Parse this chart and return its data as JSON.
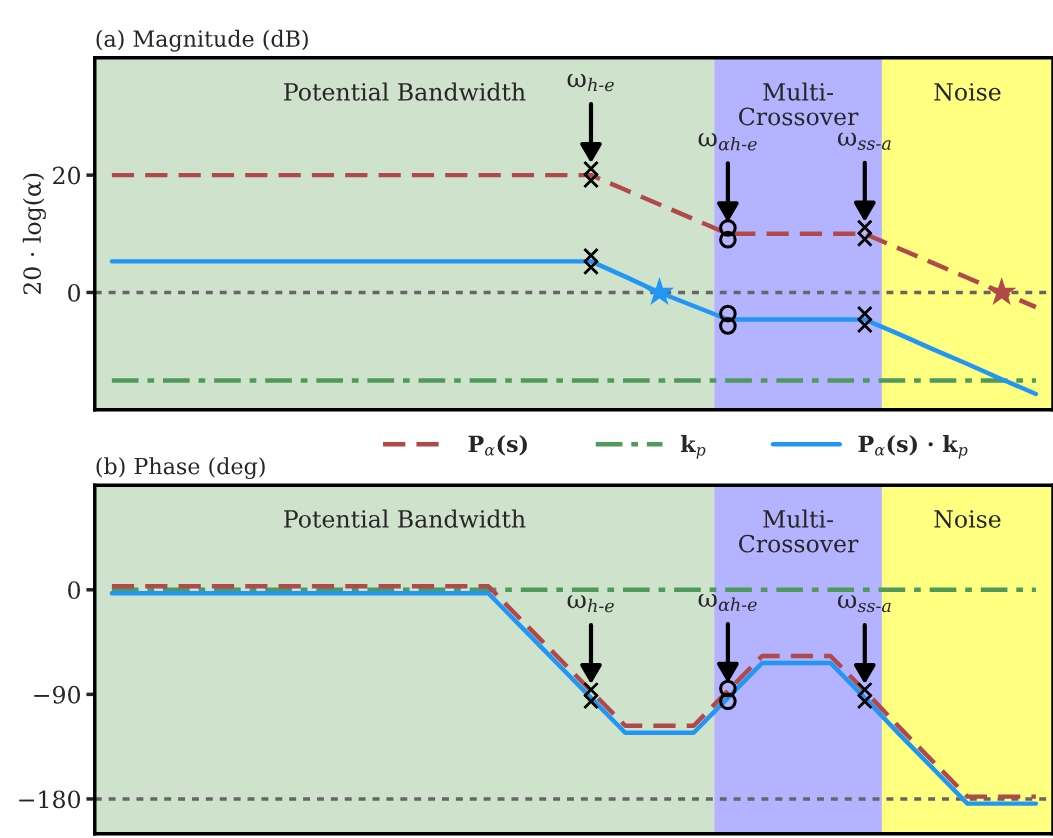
{
  "chart_data": [
    {
      "type": "line",
      "title": "(a) Magnitude (dB)",
      "ylabel": "20 · log(α)",
      "ylim": [
        -20,
        40
      ],
      "yticks": [
        0,
        20
      ],
      "tick_labels": "y",
      "legend": "bottom",
      "categories": [
        null,
        null,
        null,
        null,
        null,
        null,
        null,
        null,
        null,
        null,
        null,
        null,
        null,
        null,
        null,
        null,
        null,
        null,
        null,
        null,
        null,
        null,
        null,
        null,
        null,
        null,
        null,
        null
      ],
      "ref_lines": [
        {
          "axis": "y",
          "value": 0,
          "color": "#666666",
          "line_style": "dotted"
        }
      ],
      "series": [
        {
          "name": "P$_{α}$(s)",
          "color": "#b04a4a",
          "line_style": "dashed",
          "values": [
            20,
            20,
            20,
            20,
            20,
            20,
            20,
            20,
            20,
            20,
            20,
            20,
            20,
            20,
            20,
            17.5,
            15,
            12.5,
            10,
            10,
            10,
            10,
            10,
            7.5,
            5,
            2.5,
            0,
            -2.5
          ]
        },
        {
          "name": "k$_{p}$",
          "color": "#4f9a5a",
          "line_style": "dashdot",
          "values": [
            -15,
            -15,
            -15,
            -15,
            -15,
            -15,
            -15,
            -15,
            -15,
            -15,
            -15,
            -15,
            -15,
            -15,
            -15,
            -15,
            -15,
            -15,
            -15,
            -15,
            -15,
            -15,
            -15,
            -15,
            -15,
            -15,
            -15,
            -15
          ]
        },
        {
          "name": "P$_{α}$(s) · k$_{p}$",
          "color": "#2196f3",
          "line_style": "solid",
          "values": [
            5.3,
            5.3,
            5.3,
            5.3,
            5.3,
            5.3,
            5.3,
            5.3,
            5.3,
            5.3,
            5.3,
            5.3,
            5.3,
            5.3,
            5.3,
            2.7,
            0,
            -2.3,
            -4.6,
            -4.6,
            -4.6,
            -4.6,
            -4.6,
            -7.1,
            -9.7,
            -12.2,
            -14.8,
            -17.3
          ]
        },
        {
          "type": "scatter",
          "marker": "cross",
          "color": "#000000",
          "values": [
            null,
            null,
            null,
            null,
            null,
            null,
            null,
            null,
            null,
            null,
            null,
            null,
            null,
            null,
            21.1,
            null,
            null,
            null,
            null,
            null,
            null,
            null,
            11.1,
            null,
            null,
            null,
            null,
            null
          ]
        },
        {
          "type": "scatter",
          "marker": "cross",
          "color": "#000000",
          "values": [
            null,
            null,
            null,
            null,
            null,
            null,
            null,
            null,
            null,
            null,
            null,
            null,
            null,
            null,
            19.1,
            null,
            null,
            null,
            null,
            null,
            null,
            null,
            9.1,
            null,
            null,
            null,
            null,
            null
          ]
        },
        {
          "type": "scatter",
          "marker": "cross",
          "color": "#000000",
          "values": [
            null,
            null,
            null,
            null,
            null,
            null,
            null,
            null,
            null,
            null,
            null,
            null,
            null,
            null,
            6.3,
            null,
            null,
            null,
            null,
            null,
            null,
            null,
            -3.6,
            null,
            null,
            null,
            null,
            null
          ]
        },
        {
          "type": "scatter",
          "marker": "cross",
          "color": "#000000",
          "values": [
            null,
            null,
            null,
            null,
            null,
            null,
            null,
            null,
            null,
            null,
            null,
            null,
            null,
            null,
            4.3,
            null,
            null,
            null,
            null,
            null,
            null,
            null,
            -5.6,
            null,
            null,
            null,
            null,
            null
          ]
        },
        {
          "type": "scatter",
          "marker": "circle",
          "color": "#000000",
          "values": [
            null,
            null,
            null,
            null,
            null,
            null,
            null,
            null,
            null,
            null,
            null,
            null,
            null,
            null,
            null,
            null,
            null,
            null,
            11,
            null,
            null,
            null,
            null,
            null,
            null,
            null,
            null,
            null
          ]
        },
        {
          "type": "scatter",
          "marker": "circle",
          "color": "#000000",
          "values": [
            null,
            null,
            null,
            null,
            null,
            null,
            null,
            null,
            null,
            null,
            null,
            null,
            null,
            null,
            null,
            null,
            null,
            null,
            9,
            null,
            null,
            null,
            null,
            null,
            null,
            null,
            null,
            null
          ]
        },
        {
          "type": "scatter",
          "marker": "circle",
          "color": "#000000",
          "values": [
            null,
            null,
            null,
            null,
            null,
            null,
            null,
            null,
            null,
            null,
            null,
            null,
            null,
            null,
            null,
            null,
            null,
            null,
            -3.6,
            null,
            null,
            null,
            null,
            null,
            null,
            null,
            null,
            null
          ]
        },
        {
          "type": "scatter",
          "marker": "circle",
          "color": "#000000",
          "values": [
            null,
            null,
            null,
            null,
            null,
            null,
            null,
            null,
            null,
            null,
            null,
            null,
            null,
            null,
            null,
            null,
            null,
            null,
            -5.7,
            null,
            null,
            null,
            null,
            null,
            null,
            null,
            null,
            null
          ]
        },
        {
          "type": "scatter",
          "marker": "star",
          "color": "#2196f3",
          "values": [
            null,
            null,
            null,
            null,
            null,
            null,
            null,
            null,
            null,
            null,
            null,
            null,
            null,
            null,
            null,
            null,
            0,
            null,
            null,
            null,
            null,
            null,
            null,
            null,
            null,
            null,
            null,
            null
          ]
        },
        {
          "type": "scatter",
          "marker": "star",
          "color": "#b04a4a",
          "values": [
            null,
            null,
            null,
            null,
            null,
            null,
            null,
            null,
            null,
            null,
            null,
            null,
            null,
            null,
            null,
            null,
            null,
            null,
            null,
            null,
            null,
            null,
            null,
            null,
            null,
            null,
            0,
            null
          ]
        }
      ],
      "annotations": [
        "Potential Bandwidth",
        "Multi-\nCrossover",
        "Noise",
        "ω$_{h-e}$",
        "ω$_{αh-e}$",
        "ω$_{ss-a}$"
      ]
    },
    {
      "type": "line",
      "title": "(b) Phase (deg)",
      "ylim": [
        -210,
        90
      ],
      "yticks": [
        0,
        {
          "value": -90,
          "label": "−90"
        },
        {
          "value": -180,
          "label": "−180"
        }
      ],
      "tick_labels": "y",
      "categories": [
        null,
        null,
        null,
        null,
        null,
        null,
        null,
        null,
        null,
        null,
        null,
        null,
        null,
        null,
        null,
        null,
        null,
        null,
        null,
        null,
        null,
        null,
        null,
        null,
        null,
        null,
        null,
        null
      ],
      "ref_lines": [
        {
          "axis": "y",
          "value": -180,
          "color": "#666666",
          "line_style": "dotted"
        }
      ],
      "series": [
        {
          "color": "#4f9a5a",
          "line_style": "dashdot",
          "values": [
            0,
            0,
            0,
            0,
            0,
            0,
            0,
            0,
            0,
            0,
            0,
            0,
            0,
            0,
            0,
            0,
            0,
            0,
            0,
            0,
            0,
            0,
            0,
            0,
            0,
            0,
            0,
            0
          ]
        },
        {
          "color": "#2196f3",
          "line_style": "solid",
          "values": [
            -3,
            -3,
            -3,
            -3,
            -3,
            -3,
            -3,
            -3,
            -3,
            -3,
            -3,
            -3,
            -33,
            -63,
            -93,
            -123,
            -123,
            -123,
            -93,
            -63,
            -63,
            -63,
            -93,
            -124,
            -154,
            -184,
            -184,
            -184
          ]
        },
        {
          "color": "#b04a4a",
          "line_style": "dashed",
          "values": [
            3,
            3,
            3,
            3,
            3,
            3,
            3,
            3,
            3,
            3,
            3,
            3,
            -27,
            -57,
            -87,
            -117,
            -117,
            -117,
            -87,
            -57,
            -57,
            -57,
            -87,
            -118,
            -148,
            -178,
            -178,
            -178
          ]
        },
        {
          "type": "scatter",
          "marker": "cross",
          "color": "#000000",
          "values": [
            null,
            null,
            null,
            null,
            null,
            null,
            null,
            null,
            null,
            null,
            null,
            null,
            null,
            null,
            -86,
            null,
            null,
            null,
            null,
            null,
            null,
            null,
            -86,
            null,
            null,
            null,
            null,
            null
          ]
        },
        {
          "type": "scatter",
          "marker": "cross",
          "color": "#000000",
          "values": [
            null,
            null,
            null,
            null,
            null,
            null,
            null,
            null,
            null,
            null,
            null,
            null,
            null,
            null,
            -96,
            null,
            null,
            null,
            null,
            null,
            null,
            null,
            -96,
            null,
            null,
            null,
            null,
            null
          ]
        },
        {
          "type": "scatter",
          "marker": "circle",
          "color": "#000000",
          "values": [
            null,
            null,
            null,
            null,
            null,
            null,
            null,
            null,
            null,
            null,
            null,
            null,
            null,
            null,
            null,
            null,
            null,
            null,
            -85,
            null,
            null,
            null,
            null,
            null,
            null,
            null,
            null,
            null
          ]
        },
        {
          "type": "scatter",
          "marker": "circle",
          "color": "#000000",
          "values": [
            null,
            null,
            null,
            null,
            null,
            null,
            null,
            null,
            null,
            null,
            null,
            null,
            null,
            null,
            null,
            null,
            null,
            null,
            -96,
            null,
            null,
            null,
            null,
            null,
            null,
            null,
            null,
            null
          ]
        }
      ],
      "annotations": [
        "Potential Bandwidth",
        "Multi-\nCrossover",
        "Noise",
        "ω$_{h-e}$",
        "ω$_{αh-e}$",
        "ω$_{ss-a}$"
      ]
    }
  ]
}
